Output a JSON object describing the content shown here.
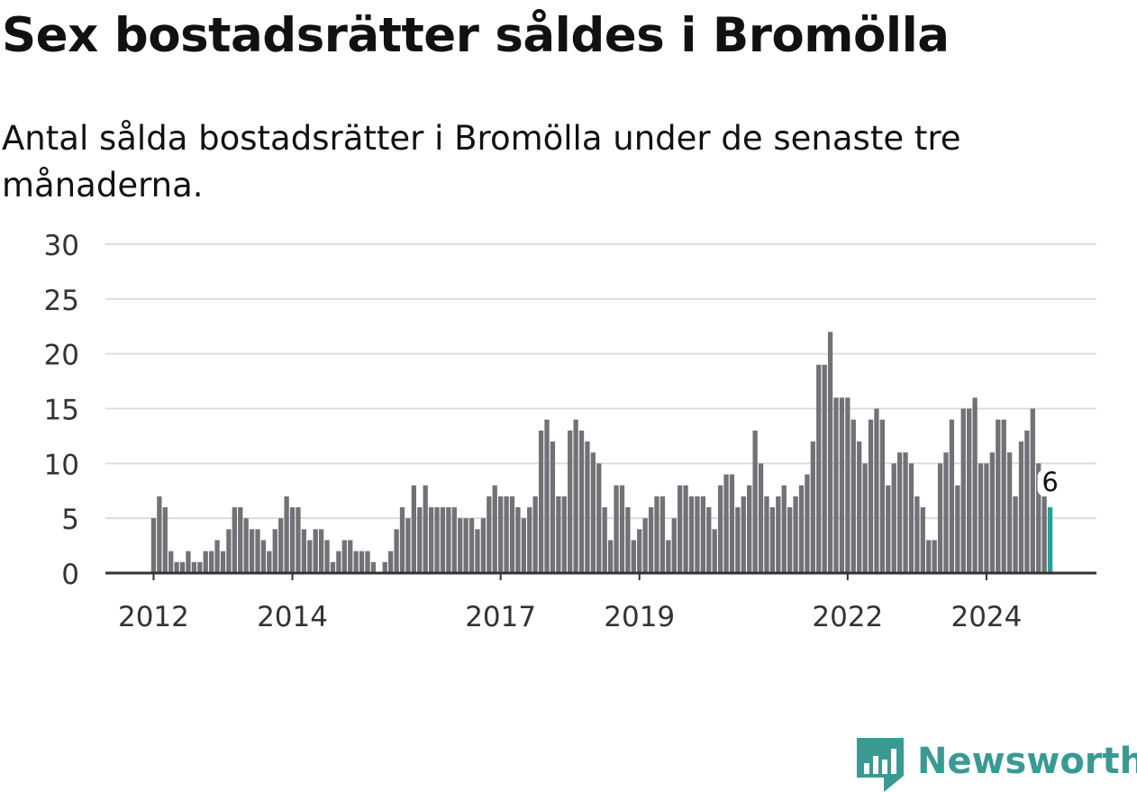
{
  "title": "Sex bostadsrätter såldes i Bromölla",
  "subtitle": "Antal sålda bostadsrätter i Bromölla under de senaste tre månaderna.",
  "brand": {
    "name": "Newsworthy",
    "icon": "bar-chart-icon",
    "color": "#3a9a93"
  },
  "colors": {
    "bar": "#727176",
    "highlight": "#20a39a",
    "grid": "#dcdcdc",
    "axis": "#333333"
  },
  "chart_data": {
    "type": "bar",
    "ylim": [
      0,
      30
    ],
    "y_ticks": [
      0,
      5,
      10,
      15,
      20,
      25,
      30
    ],
    "x_ticks": [
      "2012",
      "2014",
      "2017",
      "2019",
      "2022",
      "2024"
    ],
    "grid": true,
    "legend": "none",
    "highlight": {
      "label": "6",
      "value": 6,
      "series_index": "last"
    },
    "first_month": "2012-01",
    "values": [
      5,
      7,
      6,
      2,
      1,
      1,
      2,
      1,
      1,
      2,
      2,
      3,
      2,
      4,
      6,
      6,
      5,
      4,
      4,
      3,
      2,
      4,
      5,
      7,
      6,
      6,
      4,
      3,
      4,
      4,
      3,
      1,
      2,
      3,
      3,
      2,
      2,
      2,
      1,
      0,
      1,
      2,
      4,
      6,
      5,
      8,
      6,
      8,
      6,
      6,
      6,
      6,
      6,
      5,
      5,
      5,
      4,
      5,
      7,
      8,
      7,
      7,
      7,
      6,
      5,
      6,
      7,
      13,
      14,
      12,
      7,
      7,
      13,
      14,
      13,
      12,
      11,
      10,
      6,
      3,
      8,
      8,
      6,
      3,
      4,
      5,
      6,
      7,
      7,
      3,
      5,
      8,
      8,
      7,
      7,
      7,
      6,
      4,
      8,
      9,
      9,
      6,
      7,
      8,
      13,
      10,
      7,
      6,
      7,
      8,
      6,
      7,
      8,
      9,
      12,
      19,
      19,
      22,
      16,
      16,
      16,
      14,
      12,
      10,
      14,
      15,
      14,
      8,
      10,
      11,
      11,
      10,
      7,
      6,
      3,
      3,
      10,
      11,
      14,
      8,
      15,
      15,
      16,
      10,
      10,
      11,
      14,
      14,
      11,
      7,
      12,
      13,
      15,
      10,
      7,
      6
    ]
  }
}
